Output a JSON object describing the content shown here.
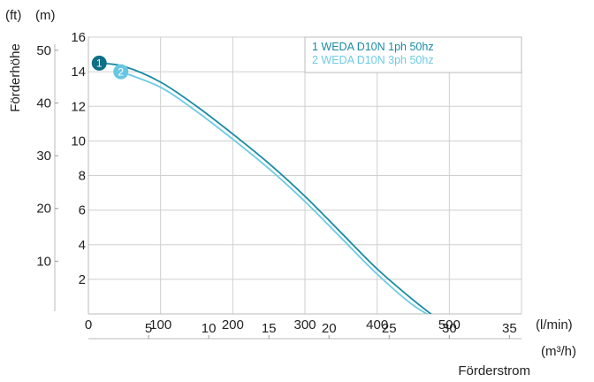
{
  "chart_data": {
    "type": "line",
    "xlabel": "Förderstrom",
    "ylabel": "Förderhöhe",
    "x_unit": "(l/min)",
    "x2_unit": "(m³/h)",
    "y_unit": "(m)",
    "y2_unit": "(ft)",
    "xlim": [
      0,
      600
    ],
    "ylim": [
      0,
      16
    ],
    "x_ticks": [
      0,
      100,
      200,
      300,
      400,
      500
    ],
    "x2_ticks": [
      5,
      10,
      15,
      20,
      25,
      30,
      35
    ],
    "y_ticks": [
      2,
      4,
      6,
      8,
      10,
      12,
      14,
      16
    ],
    "y2_ticks": [
      10,
      20,
      30,
      40,
      50
    ],
    "grid": true,
    "legend_position": "top-right",
    "series": [
      {
        "name": "1 WEDA D10N 1ph 50hz",
        "marker_label": "1",
        "color": "#1a8aa3",
        "marker_color": "#0e6f86",
        "x": [
          15,
          50,
          100,
          150,
          200,
          250,
          300,
          350,
          400,
          450,
          490
        ],
        "y": [
          14.5,
          14.3,
          13.4,
          12.0,
          10.4,
          8.7,
          6.8,
          4.7,
          2.6,
          0.8,
          -0.5
        ]
      },
      {
        "name": "2 WEDA D10N 3ph 50hz",
        "marker_label": "2",
        "color": "#6dcbe5",
        "marker_color": "#67c7e3",
        "x": [
          45,
          100,
          150,
          200,
          250,
          300,
          350,
          400,
          450,
          495
        ],
        "y": [
          14.0,
          13.1,
          11.7,
          10.1,
          8.4,
          6.5,
          4.4,
          2.3,
          0.5,
          -0.6
        ]
      }
    ]
  }
}
